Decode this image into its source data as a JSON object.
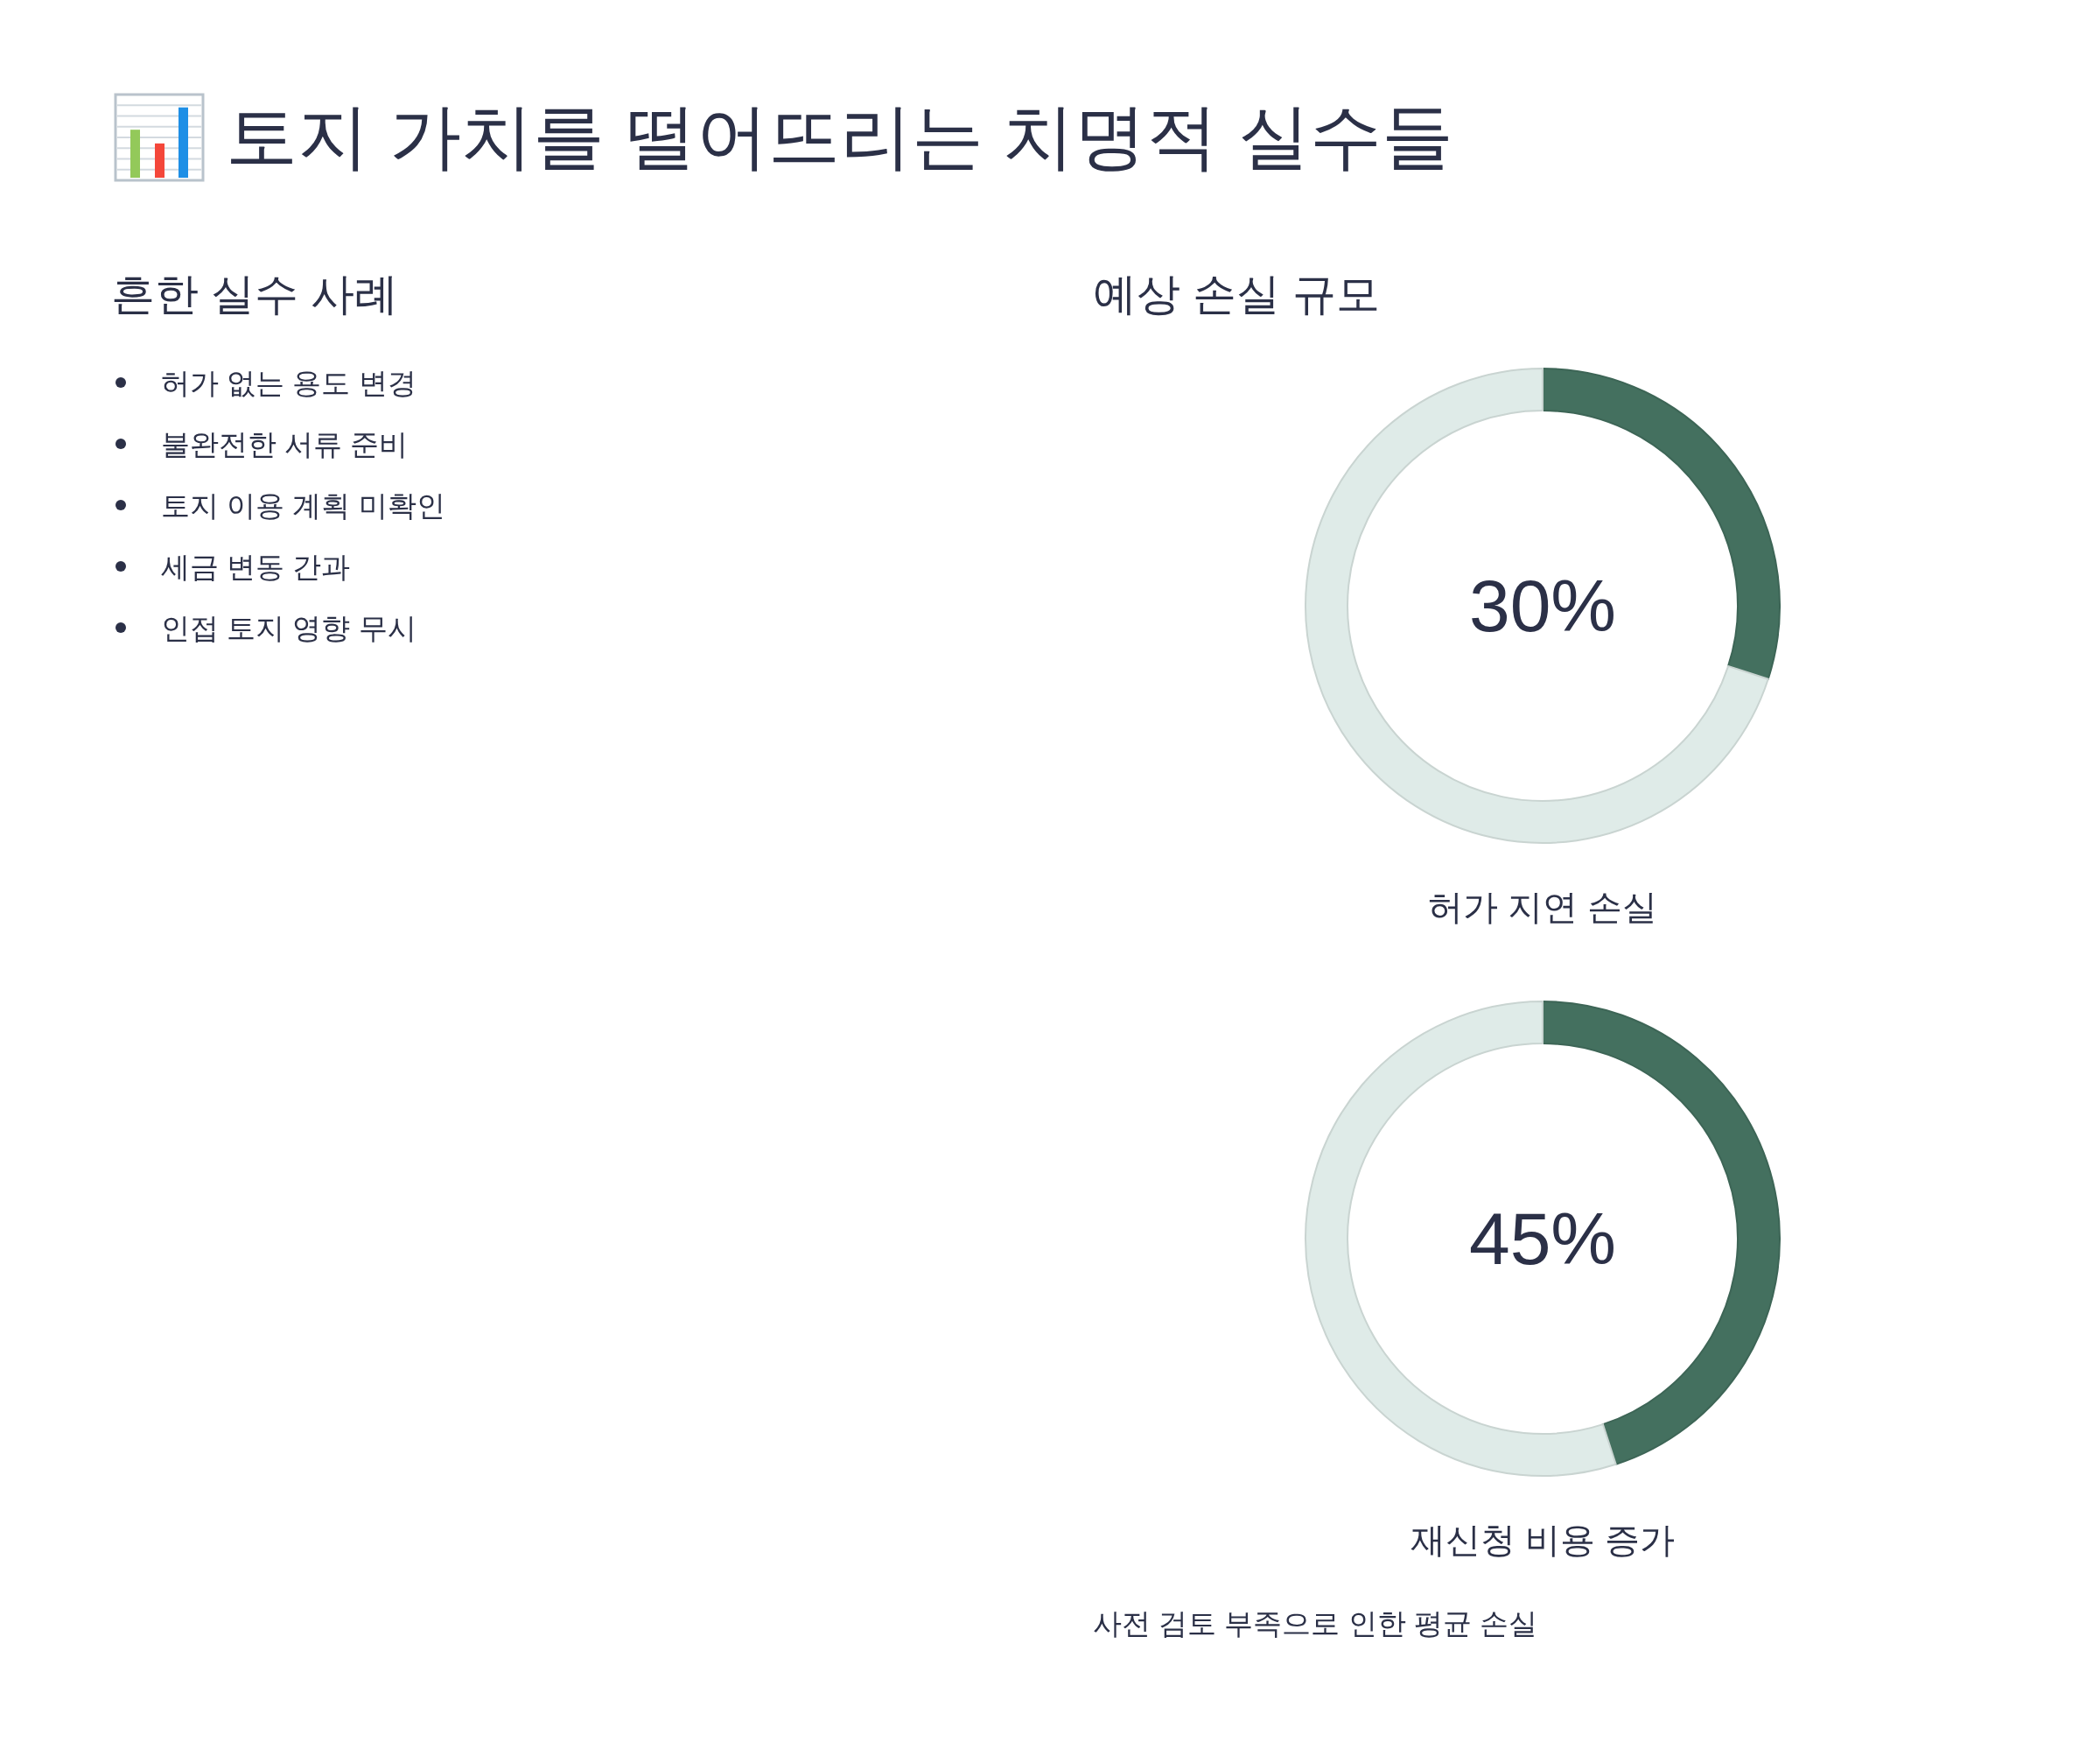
{
  "chart_data": [
    {
      "type": "other",
      "title": "토지 가치를 떨어뜨리는 치명적 실수들",
      "subtitle": "흔한 실수 사례",
      "annotations": [
        "허가 없는 용도 변경",
        "불완전한 서류 준비",
        "토지 이용 계획 미확인",
        "세금 변동 간과",
        "인접 토지 영향 무시"
      ]
    },
    {
      "type": "donut",
      "title": "예상 손실 규모",
      "xlabel": "허가 지연 손실",
      "categories": [
        null,
        null
      ],
      "values": [
        30,
        70
      ],
      "colors": [
        "#44705f",
        "#dfebe8"
      ],
      "annotations": [
        "30%"
      ]
    },
    {
      "type": "donut",
      "xlabel": "재신청 비용 증가",
      "categories": [
        null,
        null
      ],
      "values": [
        45,
        55
      ],
      "colors": [
        "#44705f",
        "#dfebe8"
      ],
      "annotations": [
        "45%",
        "사전 검토 부족으로 인한 평균 손실"
      ]
    }
  ]
}
